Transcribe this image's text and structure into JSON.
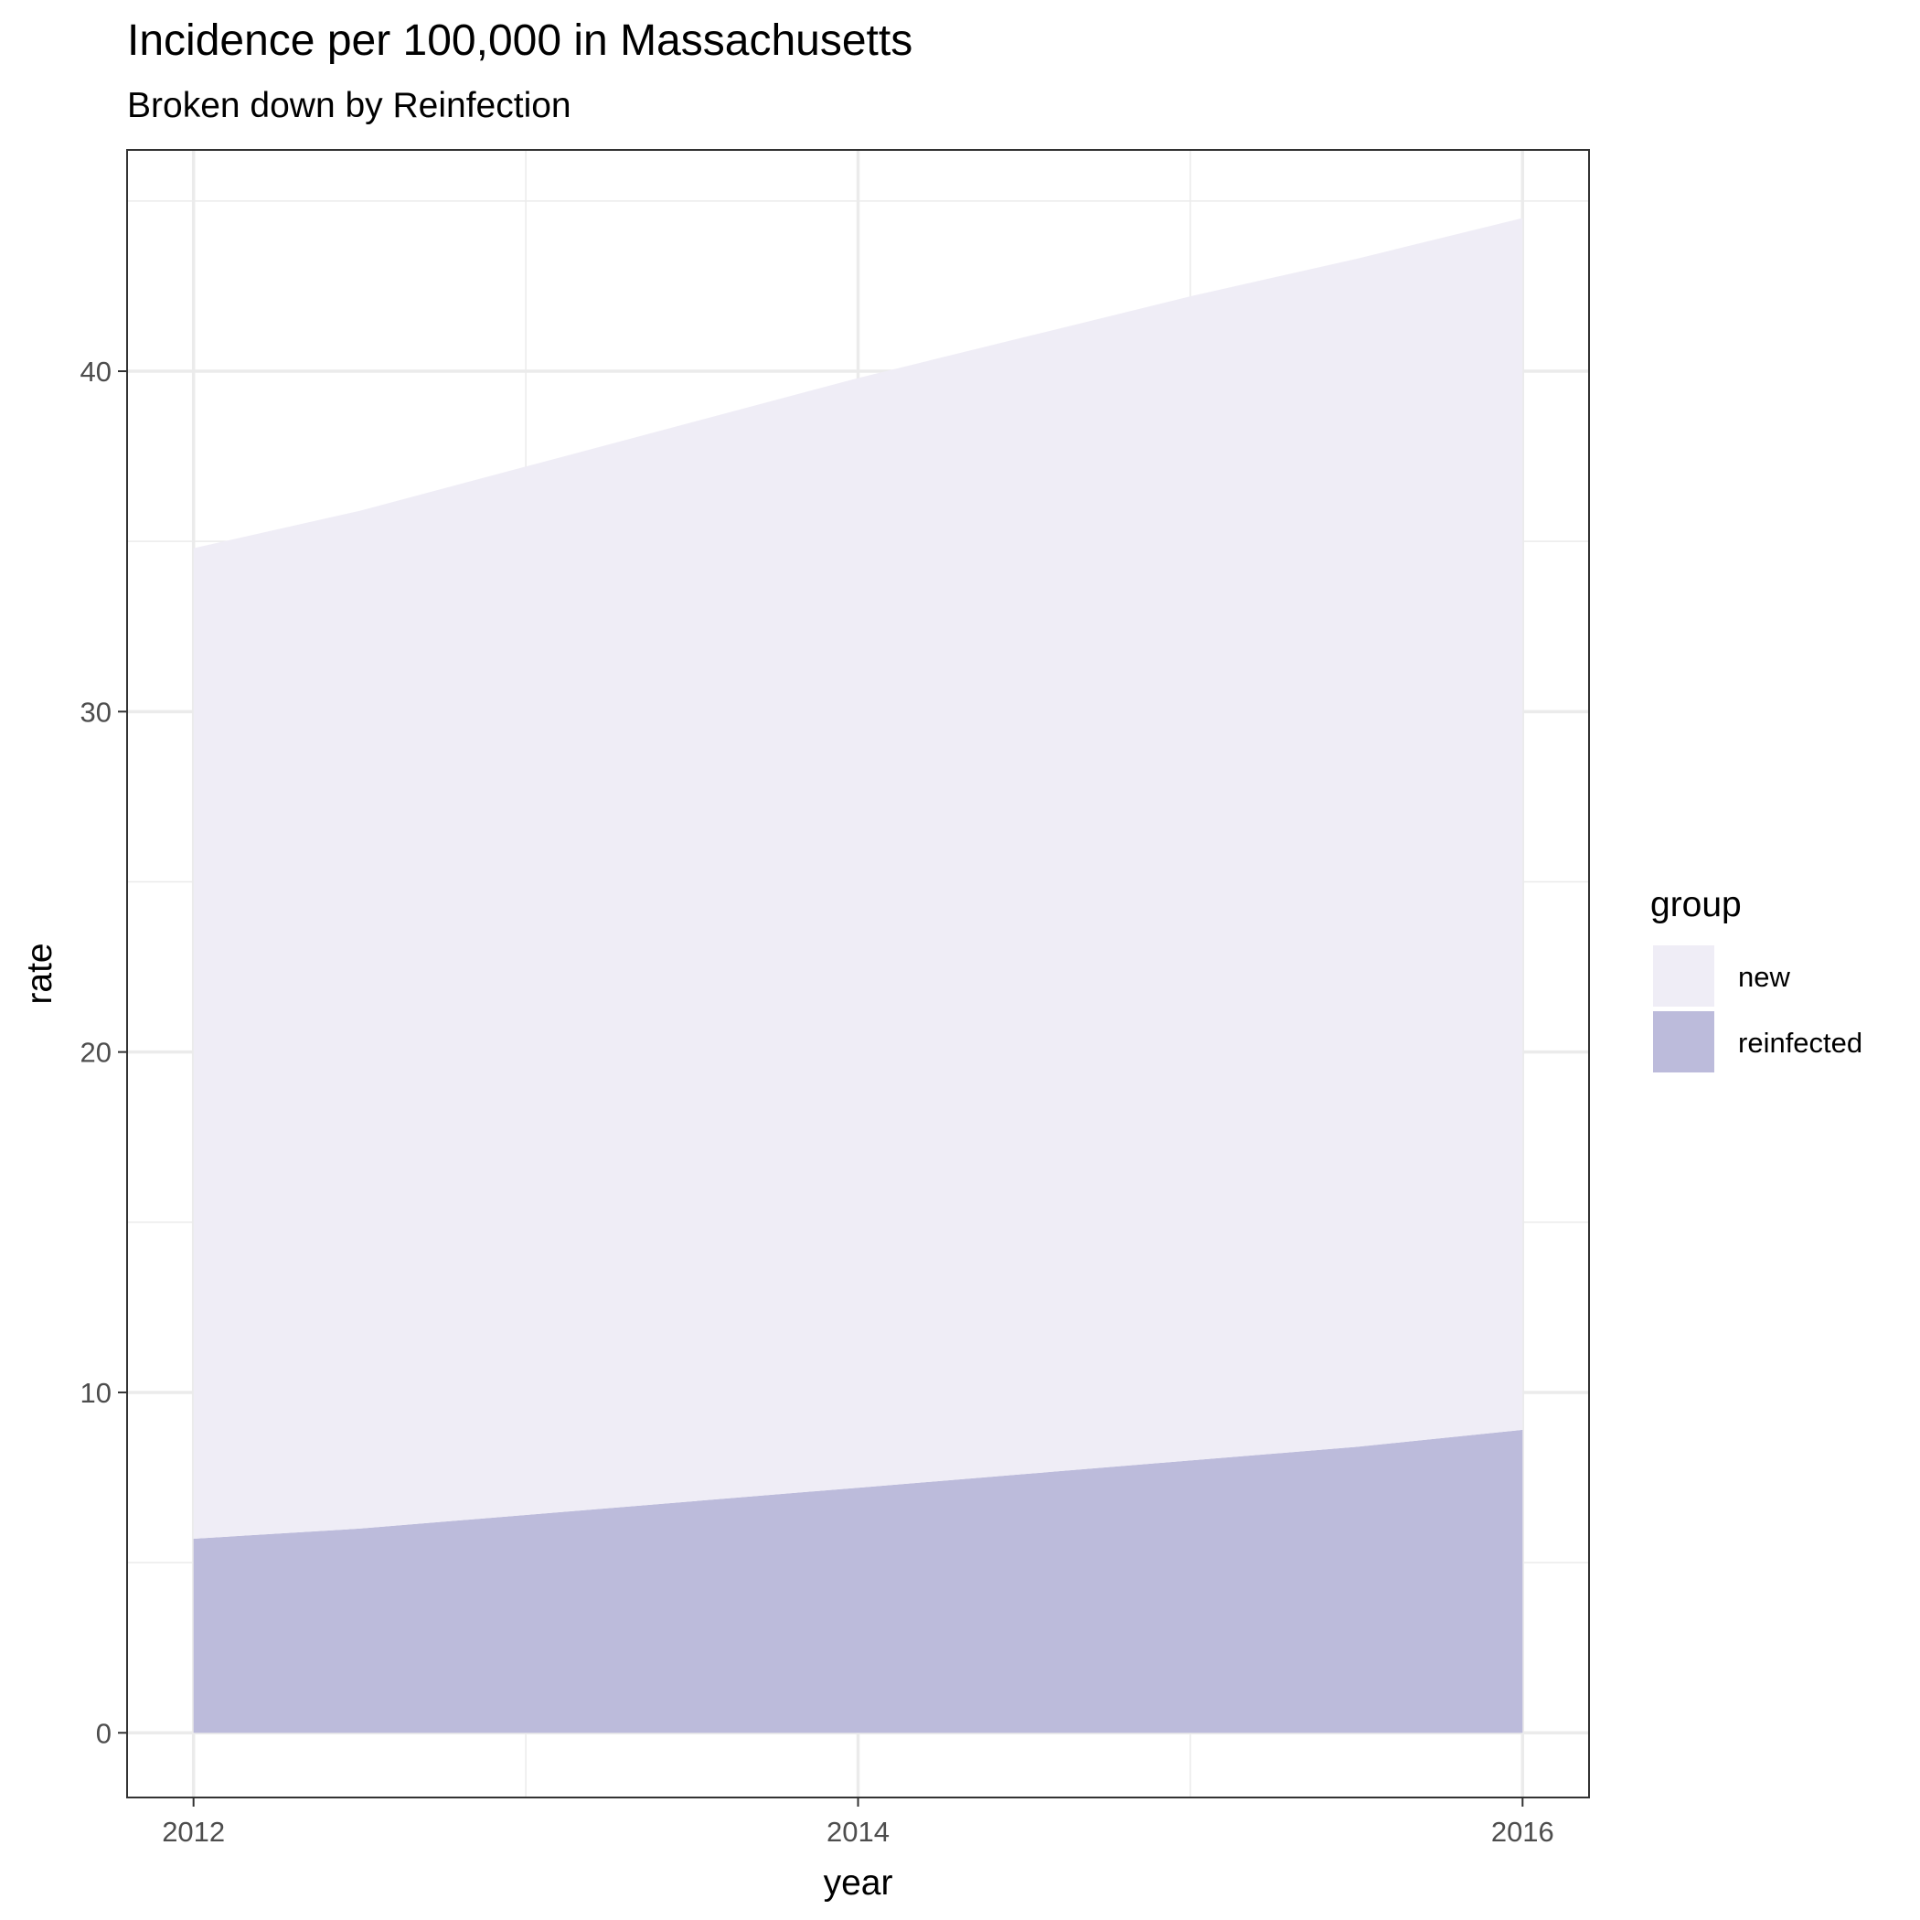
{
  "chart_data": {
    "type": "area",
    "stacked": true,
    "title": "Incidence per 100,000 in Massachusetts",
    "subtitle": "Broken down by Reinfection",
    "xlabel": "year",
    "ylabel": "rate",
    "x": [
      2012,
      2012.5,
      2013,
      2013.5,
      2014,
      2014.5,
      2015,
      2015.5,
      2016
    ],
    "xlim": [
      2011.8,
      2016.2
    ],
    "ylim": [
      -1.9,
      46.5
    ],
    "x_ticks": [
      "2012",
      "2014",
      "2016"
    ],
    "y_ticks": [
      "0",
      "10",
      "20",
      "30",
      "40"
    ],
    "grid": true,
    "legend": {
      "title": "group",
      "position": "right"
    },
    "series": [
      {
        "name": "new",
        "color": "#efedf6",
        "values": [
          29.1,
          29.9,
          30.8,
          31.7,
          32.6,
          33.4,
          34.2,
          34.9,
          35.6
        ]
      },
      {
        "name": "reinfected",
        "color": "#bcbbdb",
        "values": [
          5.7,
          6.0,
          6.4,
          6.8,
          7.2,
          7.6,
          8.0,
          8.4,
          8.9
        ]
      }
    ]
  }
}
